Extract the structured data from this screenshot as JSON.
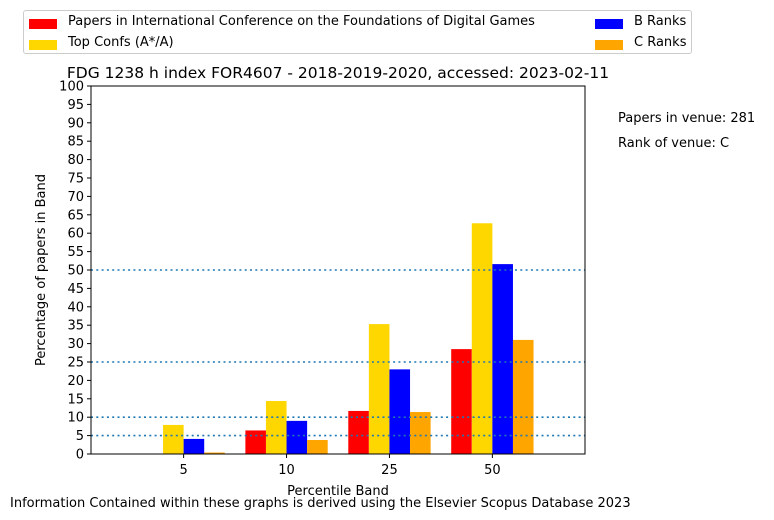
{
  "chart_data": {
    "type": "bar",
    "title": "FDG 1238 h index FOR4607 - 2018-2019-2020, accessed: 2023-02-11",
    "xlabel": "Percentile Band",
    "ylabel": "Percentage of papers in Band",
    "categories": [
      "5",
      "10",
      "25",
      "50"
    ],
    "ylim": [
      0,
      100
    ],
    "yticks": [
      0,
      5,
      10,
      15,
      20,
      25,
      30,
      35,
      40,
      45,
      50,
      55,
      60,
      65,
      70,
      75,
      80,
      85,
      90,
      95,
      100
    ],
    "reference_lines": [
      5,
      10,
      25,
      50
    ],
    "grid": false,
    "legend_position": "top",
    "series": [
      {
        "name": "Papers in International Conference on the Foundations of Digital Games",
        "color": "#ff0000",
        "values": [
          0,
          6.4,
          11.7,
          28.5
        ]
      },
      {
        "name": "Top Confs (A*/A)",
        "color": "#ffd700",
        "values": [
          7.9,
          14.4,
          35.3,
          62.7
        ]
      },
      {
        "name": "B Ranks",
        "color": "#0000ff",
        "values": [
          4.1,
          9.0,
          23.0,
          51.6
        ]
      },
      {
        "name": "C Ranks",
        "color": "#ffa500",
        "values": [
          0.4,
          3.8,
          11.4,
          31.0
        ]
      }
    ]
  },
  "side_notes": {
    "papers_in_venue": "Papers in venue: 281",
    "rank_of_venue": "Rank of venue: C"
  },
  "footer": "Information Contained within these graphs is derived using the Elsevier Scopus Database 2023"
}
